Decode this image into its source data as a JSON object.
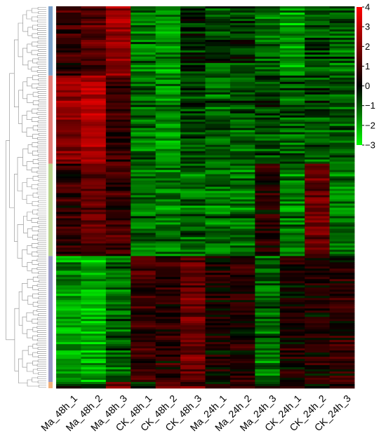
{
  "chart_data": {
    "type": "heatmap",
    "title": "",
    "columns": [
      "Ma_48h_1",
      "Ma_48h_2",
      "Ma_48h_3",
      "CK_48h_1",
      "CK_48h_2",
      "CK_48h_3",
      "Ma_24h_1",
      "Ma_24h_2",
      "Ma_24h_3",
      "CK_24h_1",
      "CK_24h_2",
      "CK_24h_3"
    ],
    "color_scale": {
      "min": -3,
      "max": 4,
      "ticks": [
        4,
        3,
        2,
        1,
        0,
        -1,
        -2,
        -3
      ],
      "colors": {
        "low": "#00ff00",
        "mid": "#000000",
        "high": "#ff0000"
      }
    },
    "row_dendrogram": true,
    "row_clusters": [
      {
        "color": "#7a9fc9",
        "fraction": 0.18
      },
      {
        "color": "#e4807a",
        "fraction": 0.23
      },
      {
        "color": "#b8d38b",
        "fraction": 0.24
      },
      {
        "color": "#9a9ac6",
        "fraction": 0.33
      },
      {
        "color": "#f2b07a",
        "fraction": 0.02
      }
    ],
    "block_means": [
      [
        0.9,
        1.2,
        2.3,
        -1.4,
        -1.8,
        -0.4,
        -0.8,
        -0.6,
        -1.2,
        -1.8,
        -0.8,
        -1.1
      ],
      [
        2.2,
        2.6,
        0.8,
        -1.3,
        -1.6,
        -0.8,
        -1.1,
        -1.0,
        -0.8,
        -1.0,
        -0.9,
        -1.0
      ],
      [
        0.8,
        1.5,
        1.0,
        -1.3,
        -1.3,
        -1.2,
        -1.3,
        -1.3,
        0.6,
        -1.4,
        1.6,
        -1.3
      ],
      [
        -1.8,
        -2.2,
        -1.2,
        0.9,
        0.6,
        1.6,
        0.4,
        0.5,
        -1.2,
        0.3,
        0.4,
        0.6
      ],
      [
        -0.6,
        -0.6,
        1.8,
        0.2,
        1.2,
        1.4,
        0.4,
        0.4,
        0.2,
        1.2,
        0.5,
        0.5
      ]
    ]
  },
  "colors": {
    "dendrogram": "#8c8c8c",
    "background": "#ffffff"
  }
}
